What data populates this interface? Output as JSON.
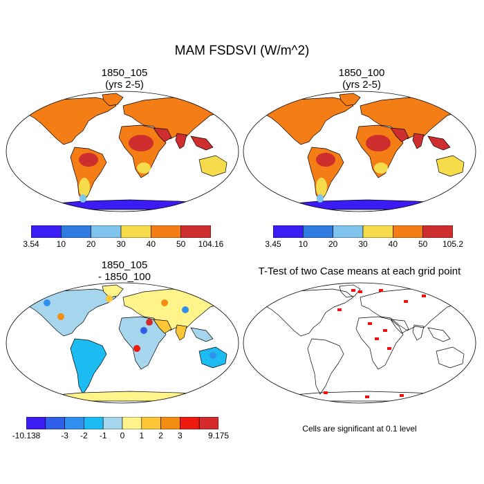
{
  "figure": {
    "title": "MAM FSDSVI (W/m^2)"
  },
  "panels": {
    "p1": {
      "title_line1": "1850_105",
      "title_line2": "(yrs 2-5)"
    },
    "p2": {
      "title_line1": "1850_100",
      "title_line2": "(yrs 2-5)"
    },
    "p3": {
      "title_line1": "1850_105",
      "title_line2": "- 1850_100"
    },
    "p4": {
      "title": "T-Test of two Case means at each grid point",
      "note": "Cells are significant at 0.1 level"
    }
  },
  "colorbars": {
    "cb1": {
      "labels": [
        "3.54",
        "10",
        "20",
        "30",
        "40",
        "50",
        "104.16"
      ],
      "colors": [
        "#3b1cf2",
        "#2f7be0",
        "#7fc4ec",
        "#f6dc4a",
        "#f57d16",
        "#cf2e2e"
      ]
    },
    "cb2": {
      "labels": [
        "3.45",
        "10",
        "20",
        "30",
        "40",
        "50",
        "105.2"
      ],
      "colors": [
        "#3b1cf2",
        "#2f7be0",
        "#7fc4ec",
        "#f6dc4a",
        "#f57d16",
        "#cf2e2e"
      ]
    },
    "cb3": {
      "labels": [
        "-10.138",
        "-3",
        "-2",
        "-1",
        "0",
        "1",
        "2",
        "3",
        "9.175"
      ],
      "label_at_boundary": [
        0,
        2,
        3,
        4,
        5,
        6,
        7,
        8,
        10
      ],
      "colors": [
        "#3b1cf2",
        "#2f5ee8",
        "#2f90f0",
        "#1cbcf2",
        "#a6d6ee",
        "#fff38a",
        "#fdc637",
        "#f28d12",
        "#ee1a10",
        "#d42a2a"
      ]
    }
  },
  "style": {
    "land_hot": "#f57d16",
    "land_veryhot": "#cf2e2e",
    "land_mid": "#f6dc4a",
    "land_cool": "#7fc4ec",
    "antarctica": "#3b1cf2",
    "sig_color": "#ee1010"
  }
}
